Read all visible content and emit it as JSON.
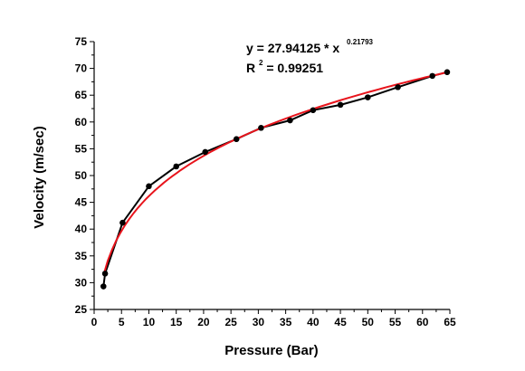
{
  "chart_data": {
    "type": "scatter",
    "xlabel": "Pressure (Bar)",
    "ylabel": "Velocity (m/sec)",
    "xlim": [
      0,
      65
    ],
    "ylim": [
      25,
      75
    ],
    "x_ticks": [
      "0",
      "5",
      "10",
      "15",
      "20",
      "25",
      "30",
      "35",
      "40",
      "45",
      "50",
      "55",
      "60",
      "65"
    ],
    "y_ticks": [
      "25",
      "30",
      "35",
      "40",
      "45",
      "50",
      "55",
      "60",
      "65",
      "70",
      "75"
    ],
    "grid": false,
    "series": [
      {
        "kind": "data",
        "color": "#000000",
        "marker": "circle",
        "points": [
          {
            "x": 1.7,
            "y": 29.3
          },
          {
            "x": 2.0,
            "y": 31.7
          },
          {
            "x": 5.2,
            "y": 41.2
          },
          {
            "x": 10.0,
            "y": 48.0
          },
          {
            "x": 15.0,
            "y": 51.7
          },
          {
            "x": 20.3,
            "y": 54.4
          },
          {
            "x": 26.0,
            "y": 56.8
          },
          {
            "x": 30.5,
            "y": 58.9
          },
          {
            "x": 35.8,
            "y": 60.3
          },
          {
            "x": 40.0,
            "y": 62.2
          },
          {
            "x": 45.0,
            "y": 63.2
          },
          {
            "x": 50.0,
            "y": 64.6
          },
          {
            "x": 55.5,
            "y": 66.5
          },
          {
            "x": 61.8,
            "y": 68.6
          },
          {
            "x": 64.5,
            "y": 69.3
          }
        ]
      },
      {
        "kind": "fit",
        "color": "#e8141c",
        "model": "power",
        "a": 27.94125,
        "b": 0.21793,
        "x_range": [
          1.7,
          64.5
        ]
      }
    ],
    "annotation": {
      "equation_main": "y = 27.94125 * x",
      "equation_exp": "0.21793",
      "r2_prefix": "R",
      "r2_sup": "2",
      "r2_value": " = 0.99251"
    }
  }
}
